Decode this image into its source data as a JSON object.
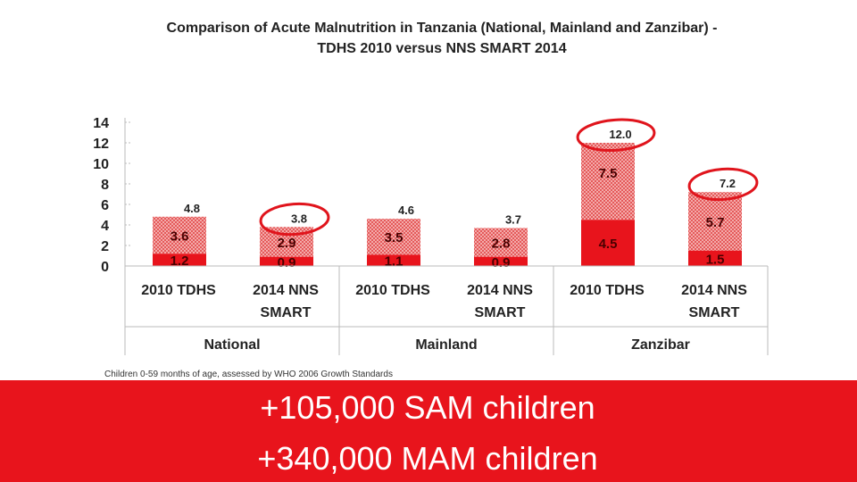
{
  "title": {
    "line1": "Comparison of Acute Malnutrition in Tanzania (National, Mainland and Zanzibar) -",
    "line2": "TDHS 2010 versus NNS SMART 2014"
  },
  "chart_data": {
    "type": "bar",
    "stacked": true,
    "groups": [
      "National",
      "Mainland",
      "Zanzibar"
    ],
    "categories": [
      "2010 TDHS",
      "2014 NNS SMART",
      "2010 TDHS",
      "2014 NNS SMART",
      "2010 TDHS",
      "2014 NNS SMART"
    ],
    "category_groups": [
      "National",
      "National",
      "Mainland",
      "Mainland",
      "Zanzibar",
      "Zanzibar"
    ],
    "series": [
      {
        "name": "SAM",
        "values": [
          1.2,
          0.9,
          1.1,
          0.9,
          4.5,
          1.5
        ],
        "labels": [
          "1.2",
          "0.9",
          "1.1",
          "0.9",
          "4.5",
          "1.5"
        ]
      },
      {
        "name": "MAM",
        "values": [
          3.6,
          2.9,
          3.5,
          2.8,
          7.5,
          5.7
        ],
        "labels": [
          "3.6",
          "2.9",
          "3.5",
          "2.8",
          "7.5",
          "5.7"
        ]
      }
    ],
    "totals": [
      4.8,
      3.8,
      4.6,
      3.7,
      12.0,
      7.2
    ],
    "total_labels": [
      "4.8",
      "3.8",
      "4.6",
      "3.7",
      "12.0",
      "7.2"
    ],
    "ylim": [
      0,
      14
    ],
    "yticks": [
      "0",
      "2",
      "4",
      "6",
      "8",
      "10",
      "12",
      "14"
    ],
    "grid": true,
    "circled_totals": [
      1,
      4,
      5
    ],
    "colors": {
      "sam": "#e8141c",
      "mam": "#f2a0a0",
      "mam_dot": "#e65c5c",
      "axis": "#bbbbbb",
      "circle": "#e0141c"
    }
  },
  "footnote": "Children 0-59 months of age, assessed by WHO 2006 Growth Standards",
  "banner": {
    "line1": "+105,000 SAM children",
    "line2": "+340,000 MAM children",
    "color": "#e8141c"
  }
}
